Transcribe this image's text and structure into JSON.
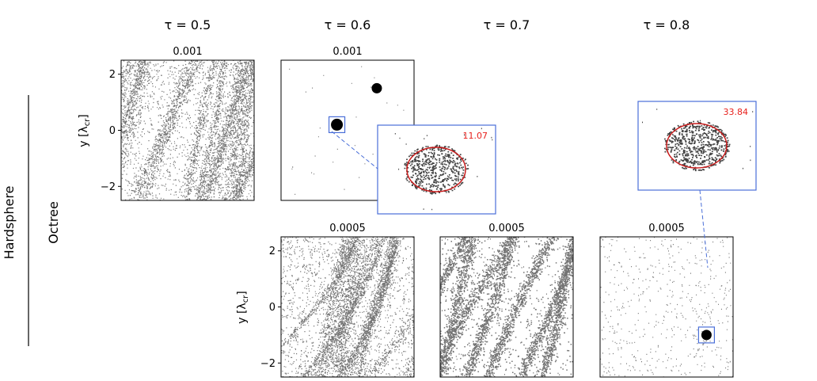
{
  "figure": {
    "row_group_label": "Hardsphere",
    "row_labels": [
      "Octree"
    ],
    "column_titles": [
      "τ = 0.5",
      "τ = 0.6",
      "τ = 0.7",
      "τ = 0.8"
    ]
  },
  "chart_data": [
    {
      "type": "scatter",
      "title": "0.001",
      "column": "τ = 0.5",
      "row": 1,
      "ylabel": "y [λ_cr]",
      "yticks": [
        2,
        0,
        -2
      ],
      "ylim": [
        -2.5,
        2.5
      ],
      "pattern": "dense diagonal filaments"
    },
    {
      "type": "scatter",
      "title": "0.001",
      "column": "τ = 0.6",
      "row": 1,
      "ylim": [
        -2.5,
        2.5
      ],
      "pattern": "two compact clumps with sparse background",
      "clumps": [
        {
          "x": -0.4,
          "y": 0.2
        },
        {
          "x": 1.1,
          "y": 1.5
        }
      ],
      "inset": {
        "annotation": "11.07",
        "annotation_color": "#e8201c",
        "circle_color": "#c91c1c"
      }
    },
    {
      "type": "scatter",
      "title": "0.0005",
      "column": "τ = 0.6",
      "row": 2,
      "ylabel": "y [λ_cr]",
      "yticks": [
        2,
        0,
        -2
      ],
      "ylim": [
        -2.5,
        2.5
      ],
      "pattern": "dense curved filaments"
    },
    {
      "type": "scatter",
      "title": "0.0005",
      "column": "τ = 0.7",
      "row": 2,
      "ylim": [
        -2.5,
        2.5
      ],
      "pattern": "thick diagonal filaments"
    },
    {
      "type": "scatter",
      "title": "0.0005",
      "column": "τ = 0.8",
      "row": 2,
      "ylim": [
        -2.5,
        2.5
      ],
      "pattern": "single compact clump with sparse background",
      "clumps": [
        {
          "x": 1.5,
          "y": -1.0
        }
      ],
      "inset": {
        "annotation": "33.84",
        "annotation_color": "#e8201c",
        "circle_color": "#c91c1c"
      }
    }
  ],
  "colors": {
    "inset_box": "#4a6fd8",
    "points": "#000000"
  }
}
